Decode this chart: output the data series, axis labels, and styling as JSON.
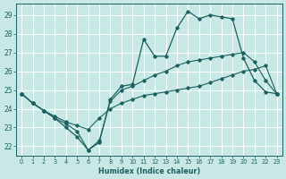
{
  "xlabel": "Humidex (Indice chaleur)",
  "bg_color": "#c8e8e5",
  "grid_color": "#ffffff",
  "line_color": "#1a6060",
  "xlim": [
    -0.5,
    23.5
  ],
  "ylim": [
    21.5,
    29.6
  ],
  "yticks": [
    22,
    23,
    24,
    25,
    26,
    27,
    28,
    29
  ],
  "xticks": [
    0,
    1,
    2,
    3,
    4,
    5,
    6,
    7,
    8,
    9,
    10,
    11,
    12,
    13,
    14,
    15,
    16,
    17,
    18,
    19,
    20,
    21,
    22,
    23
  ],
  "lines": [
    {
      "x": [
        0,
        1,
        2,
        3,
        4,
        5,
        6,
        7,
        8,
        9,
        10,
        11,
        12,
        13,
        14,
        15,
        16,
        17,
        18,
        19,
        20,
        21,
        22,
        23
      ],
      "y": [
        24.8,
        24.3,
        23.9,
        23.6,
        23.3,
        23.1,
        22.9,
        23.5,
        24.0,
        24.3,
        24.5,
        24.7,
        24.8,
        24.9,
        25.0,
        25.1,
        25.2,
        25.4,
        25.6,
        25.8,
        26.0,
        26.1,
        26.3,
        24.8
      ],
      "marker": "D",
      "markersize": 1.8,
      "lw": 0.8
    },
    {
      "x": [
        0,
        1,
        2,
        3,
        4,
        5,
        6,
        7,
        8,
        9,
        10,
        11,
        12,
        13,
        14,
        15,
        16,
        17,
        18,
        19,
        20,
        21,
        22,
        23
      ],
      "y": [
        24.8,
        24.3,
        23.9,
        23.5,
        23.2,
        22.8,
        21.8,
        22.3,
        24.4,
        25.0,
        25.2,
        25.5,
        25.8,
        26.0,
        26.3,
        26.5,
        26.6,
        26.7,
        26.8,
        26.9,
        27.0,
        26.5,
        25.5,
        24.8
      ],
      "marker": "D",
      "markersize": 1.8,
      "lw": 0.8
    },
    {
      "x": [
        0,
        1,
        2,
        3,
        4,
        5,
        6,
        7,
        8,
        9,
        10,
        11,
        12,
        13,
        14,
        15,
        16,
        17,
        18,
        19,
        20,
        21,
        22,
        23
      ],
      "y": [
        24.8,
        24.3,
        23.9,
        23.5,
        23.0,
        22.5,
        21.8,
        22.2,
        24.5,
        25.2,
        25.3,
        27.7,
        26.8,
        26.8,
        28.3,
        29.2,
        28.8,
        29.0,
        28.9,
        28.8,
        26.7,
        25.5,
        24.9,
        24.8
      ],
      "marker": "D",
      "markersize": 1.8,
      "lw": 0.9
    }
  ]
}
